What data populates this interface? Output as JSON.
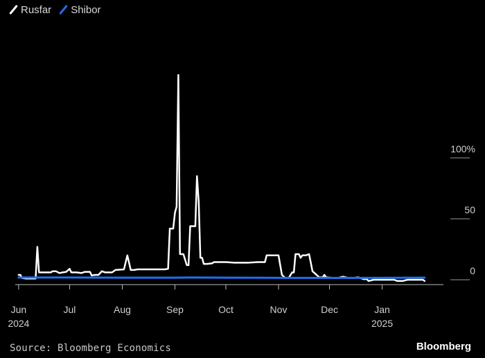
{
  "legend": [
    {
      "name": "Rusfar",
      "color": "#ffffff"
    },
    {
      "name": "Shibor",
      "color": "#1f6ff2"
    }
  ],
  "source": "Source: Bloomberg Economics",
  "brand": "Bloomberg",
  "chart_data": {
    "type": "line",
    "ylabel_unit": "%",
    "yticks": [
      {
        "value": 0,
        "label": "0"
      },
      {
        "value": 50,
        "label": "50"
      },
      {
        "value": 100,
        "label": "100%"
      }
    ],
    "ylim": [
      -3,
      110
    ],
    "xlim": [
      "2024-05-30",
      "2025-02-02"
    ],
    "xticks": [
      {
        "date": "2024-06-01",
        "label": "Jun",
        "sublabel": "2024"
      },
      {
        "date": "2024-07-01",
        "label": "Jul",
        "sublabel": ""
      },
      {
        "date": "2024-08-01",
        "label": "Aug",
        "sublabel": ""
      },
      {
        "date": "2024-09-01",
        "label": "Sep",
        "sublabel": ""
      },
      {
        "date": "2024-10-01",
        "label": "Oct",
        "sublabel": ""
      },
      {
        "date": "2024-11-01",
        "label": "Nov",
        "sublabel": ""
      },
      {
        "date": "2024-12-01",
        "label": "Dec",
        "sublabel": ""
      },
      {
        "date": "2025-01-01",
        "label": "Jan",
        "sublabel": "2025"
      }
    ],
    "grid": false,
    "legend_position": "top-left",
    "series": [
      {
        "name": "Rusfar",
        "color": "#ffffff",
        "points": [
          [
            "2024-06-01",
            4
          ],
          [
            "2024-06-02",
            4
          ],
          [
            "2024-06-03",
            1.5
          ],
          [
            "2024-06-05",
            1
          ],
          [
            "2024-06-07",
            1
          ],
          [
            "2024-06-11",
            1
          ],
          [
            "2024-06-12",
            27
          ],
          [
            "2024-06-13",
            6
          ],
          [
            "2024-06-17",
            6
          ],
          [
            "2024-06-20",
            6
          ],
          [
            "2024-06-21",
            7
          ],
          [
            "2024-06-23",
            7
          ],
          [
            "2024-06-25",
            5.5
          ],
          [
            "2024-06-27",
            6
          ],
          [
            "2024-06-29",
            6.5
          ],
          [
            "2024-07-01",
            9
          ],
          [
            "2024-07-02",
            6
          ],
          [
            "2024-07-05",
            6
          ],
          [
            "2024-07-08",
            5.5
          ],
          [
            "2024-07-10",
            6.5
          ],
          [
            "2024-07-13",
            6.5
          ],
          [
            "2024-07-14",
            3.5
          ],
          [
            "2024-07-16",
            4
          ],
          [
            "2024-07-18",
            4
          ],
          [
            "2024-07-20",
            7
          ],
          [
            "2024-07-22",
            6
          ],
          [
            "2024-07-24",
            6
          ],
          [
            "2024-07-26",
            6
          ],
          [
            "2024-07-28",
            8
          ],
          [
            "2024-08-02",
            8.5
          ],
          [
            "2024-08-04",
            20
          ],
          [
            "2024-08-06",
            8
          ],
          [
            "2024-08-08",
            8
          ],
          [
            "2024-08-10",
            8.5
          ],
          [
            "2024-08-15",
            8.5
          ],
          [
            "2024-08-20",
            8.5
          ],
          [
            "2024-08-26",
            8.5
          ],
          [
            "2024-08-28",
            9
          ],
          [
            "2024-08-29",
            42
          ],
          [
            "2024-08-31",
            42
          ],
          [
            "2024-09-01",
            55
          ],
          [
            "2024-09-02",
            60
          ],
          [
            "2024-09-03",
            168
          ],
          [
            "2024-09-04",
            21
          ],
          [
            "2024-09-06",
            21
          ],
          [
            "2024-09-08",
            12
          ],
          [
            "2024-09-09",
            12
          ],
          [
            "2024-09-10",
            44
          ],
          [
            "2024-09-13",
            44
          ],
          [
            "2024-09-14",
            85
          ],
          [
            "2024-09-15",
            64
          ],
          [
            "2024-09-16",
            18
          ],
          [
            "2024-09-17",
            18
          ],
          [
            "2024-09-18",
            13
          ],
          [
            "2024-09-20",
            13
          ],
          [
            "2024-09-23",
            13.5
          ],
          [
            "2024-09-24",
            14.5
          ],
          [
            "2024-10-01",
            14.5
          ],
          [
            "2024-10-06",
            14
          ],
          [
            "2024-10-10",
            14
          ],
          [
            "2024-10-14",
            14
          ],
          [
            "2024-10-20",
            14.5
          ],
          [
            "2024-10-24",
            14.5
          ],
          [
            "2024-10-25",
            20
          ],
          [
            "2024-11-01",
            20
          ],
          [
            "2024-11-03",
            4
          ],
          [
            "2024-11-05",
            1.5
          ],
          [
            "2024-11-07",
            1.5
          ],
          [
            "2024-11-09",
            6
          ],
          [
            "2024-11-10",
            6
          ],
          [
            "2024-11-11",
            21
          ],
          [
            "2024-11-13",
            21
          ],
          [
            "2024-11-14",
            18
          ],
          [
            "2024-11-15",
            20
          ],
          [
            "2024-11-17",
            20
          ],
          [
            "2024-11-19",
            21
          ],
          [
            "2024-11-20",
            14
          ],
          [
            "2024-11-21",
            7
          ],
          [
            "2024-11-23",
            4.5
          ],
          [
            "2024-11-25",
            2
          ],
          [
            "2024-11-27",
            2
          ],
          [
            "2024-11-28",
            4
          ],
          [
            "2024-11-29",
            2
          ],
          [
            "2024-12-03",
            1.5
          ],
          [
            "2024-12-06",
            1.5
          ],
          [
            "2024-12-09",
            2.5
          ],
          [
            "2024-12-12",
            1.5
          ],
          [
            "2024-12-15",
            1.5
          ],
          [
            "2024-12-18",
            2
          ],
          [
            "2024-12-21",
            0.5
          ],
          [
            "2024-12-23",
            0.5
          ],
          [
            "2024-12-24",
            -1
          ],
          [
            "2024-12-27",
            0
          ],
          [
            "2024-12-31",
            0
          ],
          [
            "2025-01-03",
            0
          ],
          [
            "2025-01-08",
            0
          ],
          [
            "2025-01-10",
            -1
          ],
          [
            "2025-01-13",
            -1
          ],
          [
            "2025-01-16",
            0
          ],
          [
            "2025-01-20",
            0
          ],
          [
            "2025-01-25",
            0
          ],
          [
            "2025-01-26",
            -1
          ]
        ]
      },
      {
        "name": "Shibor",
        "color": "#1f6ff2",
        "points": [
          [
            "2024-06-01",
            1.9
          ],
          [
            "2024-07-01",
            1.8
          ],
          [
            "2024-08-01",
            1.7
          ],
          [
            "2024-09-01",
            1.7
          ],
          [
            "2024-09-10",
            1.8
          ],
          [
            "2024-10-01",
            1.7
          ],
          [
            "2024-11-01",
            1.6
          ],
          [
            "2024-12-01",
            1.5
          ],
          [
            "2025-01-01",
            1.6
          ],
          [
            "2025-01-26",
            1.7
          ]
        ]
      }
    ]
  }
}
